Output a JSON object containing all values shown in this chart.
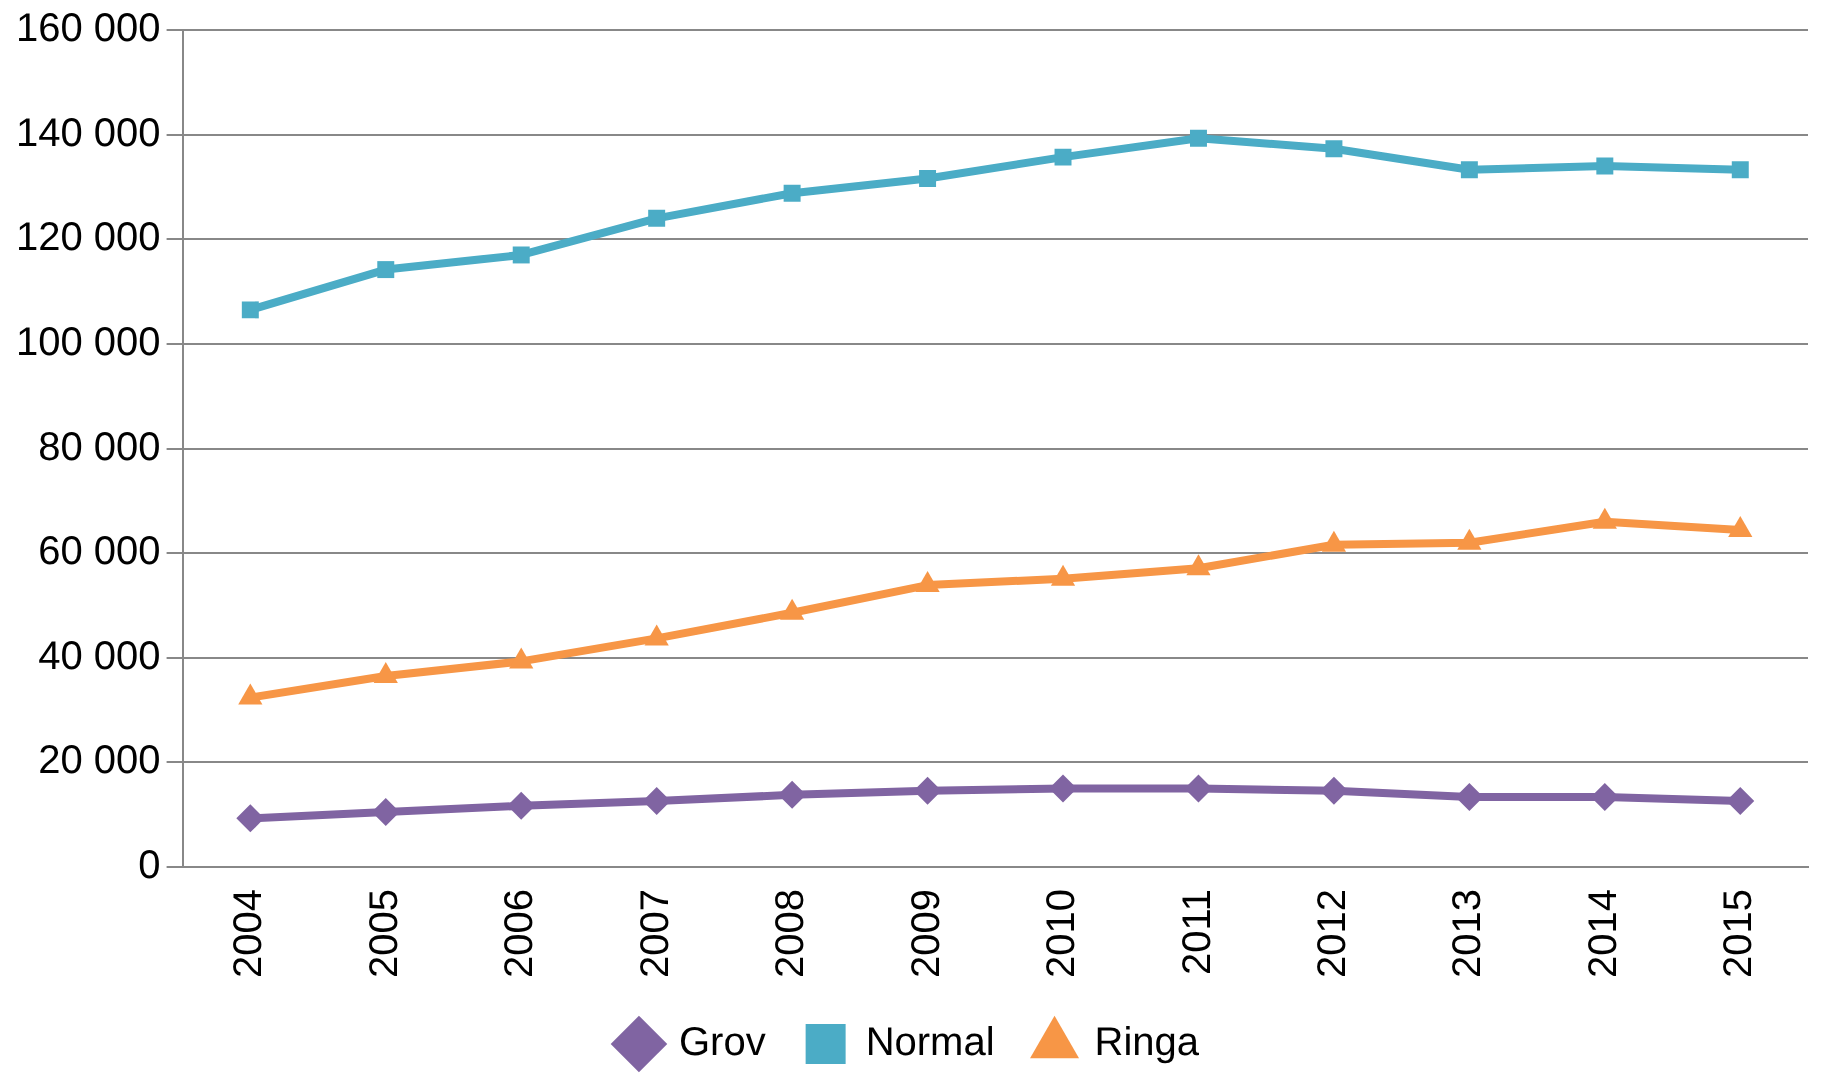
{
  "chart_data": {
    "type": "line",
    "categories": [
      "2004",
      "2005",
      "2006",
      "2007",
      "2008",
      "2009",
      "2010",
      "2011",
      "2012",
      "2013",
      "2014",
      "2015"
    ],
    "series": [
      {
        "name": "Grov",
        "color": "#8064a2",
        "marker": "diamond",
        "values": [
          9300,
          10500,
          11700,
          12600,
          13800,
          14600,
          15000,
          15000,
          14600,
          13400,
          13400,
          12600
        ]
      },
      {
        "name": "Normal",
        "color": "#4bacc6",
        "marker": "square",
        "values": [
          106500,
          114200,
          117000,
          124000,
          128800,
          131600,
          135700,
          139300,
          137300,
          133300,
          134000,
          133300
        ]
      },
      {
        "name": "Ringa",
        "color": "#f79646",
        "marker": "triangle",
        "values": [
          32400,
          36500,
          39300,
          43700,
          48600,
          53900,
          55100,
          57100,
          61600,
          62000,
          66000,
          64400
        ]
      }
    ],
    "ylim": [
      0,
      160000
    ],
    "yticks": [
      {
        "value": 0,
        "label": "0"
      },
      {
        "value": 20000,
        "label": "20 000"
      },
      {
        "value": 40000,
        "label": "40 000"
      },
      {
        "value": 60000,
        "label": "60 000"
      },
      {
        "value": 80000,
        "label": "80 000"
      },
      {
        "value": 100000,
        "label": "100 000"
      },
      {
        "value": 120000,
        "label": "120 000"
      },
      {
        "value": 140000,
        "label": "140 000"
      },
      {
        "value": 160000,
        "label": "160 000"
      }
    ],
    "grid": "y",
    "legend": "bottom",
    "line_style": "solid"
  }
}
